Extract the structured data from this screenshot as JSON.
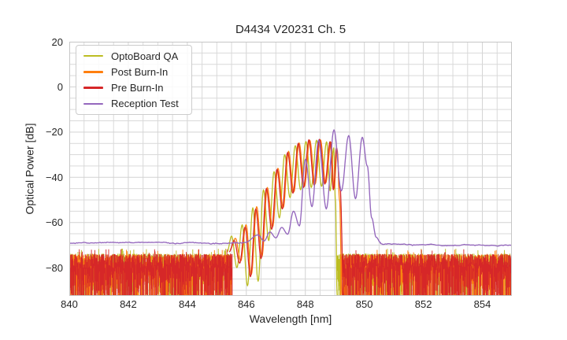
{
  "chart_data": {
    "type": "line",
    "title": "D4434 V20231 Ch. 5",
    "xlabel": "Wavelength [nm]",
    "ylabel": "Optical Power [dB]",
    "xlim": [
      840,
      855
    ],
    "ylim": [
      -92.5,
      20
    ],
    "x_major_ticks": [
      840,
      842,
      844,
      846,
      848,
      850,
      852,
      854
    ],
    "y_major_ticks": [
      20,
      0,
      -20,
      -40,
      -60,
      -80
    ],
    "x_minor_step_nm": 0.5,
    "y_minor_step_db": 5,
    "grid": true,
    "legend_position": "upper-left",
    "legend_entries": [
      "OptoBoard QA",
      "Post Burn-In",
      "Pre Burn-In",
      "Reception Test"
    ],
    "grid_color": "#d9d9d9",
    "major_grid_color": "#d2d2d2",
    "spine_color": "#c6c6c6",
    "series": [
      {
        "id": "optoboard-qa",
        "name": "OptoBoard QA",
        "color": "#bcbd22",
        "kind": "noisy",
        "seed": 11,
        "noise": {
          "ranges": [
            [
              840,
              845.42
            ],
            [
              849.08,
              855
            ]
          ],
          "top_db": -73.8,
          "spread_db": 15
        },
        "start": [
          845.35,
          -73
        ],
        "peaks": [
          [
            845.5,
            -66
          ],
          [
            845.86,
            -61
          ],
          [
            846.22,
            -53.5
          ],
          [
            846.58,
            -45.5
          ],
          [
            846.94,
            -37.5
          ],
          [
            847.3,
            -30
          ],
          [
            847.66,
            -26
          ],
          [
            848.02,
            -24.2
          ],
          [
            848.38,
            -23.6
          ],
          [
            848.72,
            -24.3
          ],
          [
            848.96,
            -27
          ]
        ],
        "dips": [
          -80,
          -88,
          -86,
          -68,
          -58,
          -49,
          -45.5,
          -44.5,
          -44,
          -46
        ],
        "end": [
          [
            849.02,
            -50
          ],
          [
            849.08,
            -92.3
          ]
        ]
      },
      {
        "id": "post-burn-in",
        "name": "Post Burn-In",
        "color": "#ff7f0e",
        "kind": "noisy",
        "seed": 22,
        "noise": {
          "ranges": [
            [
              840,
              845.5
            ],
            [
              849.2,
              855
            ]
          ],
          "top_db": -74.2,
          "spread_db": 15
        },
        "start": [
          845.45,
          -72
        ],
        "peaks": [
          [
            845.63,
            -67
          ],
          [
            845.99,
            -61
          ],
          [
            846.35,
            -53
          ],
          [
            846.71,
            -44.5
          ],
          [
            847.07,
            -36
          ],
          [
            847.43,
            -28.5
          ],
          [
            847.79,
            -24.8
          ],
          [
            848.15,
            -23.6
          ],
          [
            848.51,
            -23.4
          ],
          [
            848.87,
            -24.5
          ],
          [
            849.08,
            -28
          ]
        ],
        "dips": [
          -77,
          -83,
          -75,
          -62,
          -53.5,
          -46.5,
          -44,
          -43,
          -42.5,
          -45
        ],
        "end": [
          [
            849.16,
            -50
          ],
          [
            849.24,
            -92.3
          ]
        ]
      },
      {
        "id": "pre-burn-in",
        "name": "Pre Burn-In",
        "color": "#d62728",
        "kind": "noisy",
        "seed": 33,
        "noise": {
          "ranges": [
            [
              840,
              845.52
            ],
            [
              849.26,
              855
            ]
          ],
          "top_db": -74.0,
          "spread_db": 16
        },
        "start": [
          845.42,
          -73
        ],
        "peaks": [
          [
            845.59,
            -68
          ],
          [
            845.96,
            -62
          ],
          [
            846.32,
            -54
          ],
          [
            846.68,
            -45
          ],
          [
            847.04,
            -36.5
          ],
          [
            847.4,
            -29
          ],
          [
            847.76,
            -25
          ],
          [
            848.12,
            -23.4
          ],
          [
            848.48,
            -23.2
          ],
          [
            848.84,
            -24.2
          ],
          [
            849.06,
            -27
          ]
        ],
        "dips": [
          -78,
          -84,
          -76,
          -63,
          -54,
          -47,
          -44.5,
          -43.5,
          -43,
          -45.5
        ],
        "end": [
          [
            849.18,
            -45
          ],
          [
            849.3,
            -92.3
          ]
        ]
      },
      {
        "id": "reception-test",
        "name": "Reception Test",
        "color": "#9467bd",
        "kind": "baseline",
        "seed": 44,
        "baseline": {
          "left_db": -69.2,
          "right_db": -69.7,
          "jitter_db": 0.7,
          "rise_start": 845.95,
          "fall_end": 850.55
        },
        "start": [
          845.95,
          -68.9
        ],
        "peaks": [
          [
            846.4,
            -65.5
          ],
          [
            846.8,
            -64.2
          ],
          [
            847.2,
            -62.2
          ],
          [
            847.6,
            -55
          ],
          [
            848.0,
            -32
          ],
          [
            848.45,
            -23.5
          ],
          [
            848.97,
            -19
          ],
          [
            849.47,
            -21.5
          ],
          [
            849.93,
            -22.3
          ]
        ],
        "dips": [
          -68.2,
          -66.8,
          -65.2,
          -61.5,
          -53,
          -54,
          -46,
          -49.5
        ],
        "end": [
          [
            850.1,
            -35
          ],
          [
            850.25,
            -58
          ],
          [
            850.4,
            -66.5
          ],
          [
            850.55,
            -68.9
          ]
        ]
      }
    ]
  }
}
